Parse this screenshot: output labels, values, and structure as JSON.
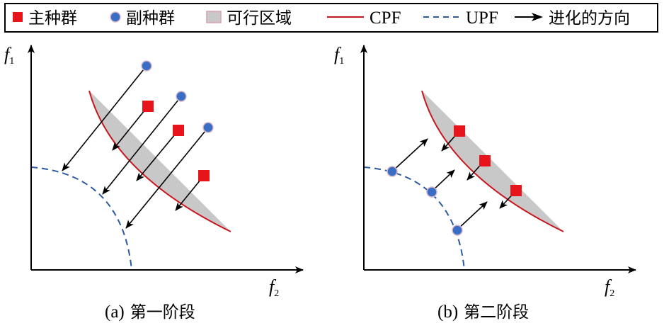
{
  "legend": {
    "main_population": "主种群",
    "aux_population": "副种群",
    "feasible_region": "可行区域",
    "cpf": "CPF",
    "upf": "UPF",
    "evolution_direction": "进化的方向"
  },
  "panel_a": {
    "y_axis_label": "f",
    "y_axis_sub": "1",
    "x_axis_label": "f",
    "x_axis_sub": "2",
    "caption_prefix": "(a)",
    "caption_text": "第一阶段"
  },
  "panel_b": {
    "y_axis_label": "f",
    "y_axis_sub": "1",
    "x_axis_label": "f",
    "x_axis_sub": "2",
    "caption_prefix": "(b)",
    "caption_text": "第二阶段"
  },
  "colors": {
    "main_population": "#e8141c",
    "aux_population": "#3a6ec4",
    "feasible_region": "#c8c8c8",
    "cpf": "#c8161e",
    "upf": "#2c5aa0",
    "arrow": "#000000"
  }
}
